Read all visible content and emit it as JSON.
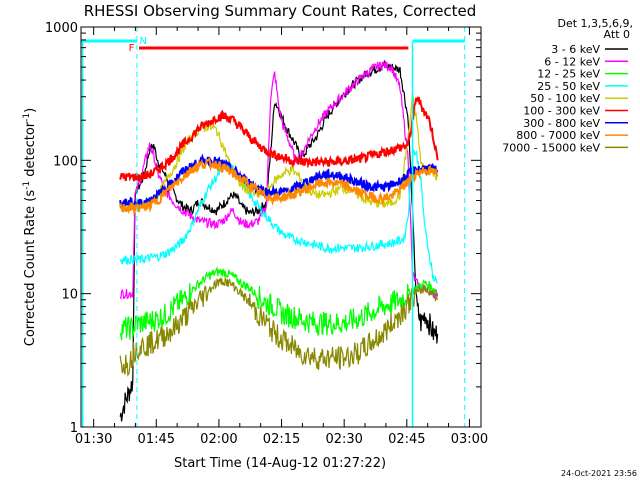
{
  "chart_data": {
    "type": "line",
    "title": "RHESSI Observing Summary Count Rates, Corrected",
    "xlabel": "Start Time (14-Aug-12 01:27:22)",
    "ylabel_main": "Corrected Count Rate (s",
    "ylabel_sup1": "-1",
    "ylabel_mid": " detector",
    "ylabel_sup2": "-1",
    "ylabel_end": ")",
    "y_scale": "log",
    "ylim": [
      1,
      1000
    ],
    "xlim_minutes": [
      -0.4,
      95.4
    ],
    "xticks": [
      {
        "label": "01:30",
        "m": 2.63
      },
      {
        "label": "01:45",
        "m": 17.63
      },
      {
        "label": "02:00",
        "m": 32.63
      },
      {
        "label": "02:15",
        "m": 47.63
      },
      {
        "label": "02:30",
        "m": 62.63
      },
      {
        "label": "02:45",
        "m": 77.63
      },
      {
        "label": "03:00",
        "m": 92.63
      }
    ],
    "yticks": [
      {
        "label": "1",
        "v": 1
      },
      {
        "label": "10",
        "v": 10
      },
      {
        "label": "100",
        "v": 100
      },
      {
        "label": "1000",
        "v": 1000
      }
    ],
    "legend_title_1": "Det 1,3,5,6,9,",
    "legend_title_2": "Att 0",
    "legend_placement": "right",
    "series": [
      {
        "name": "3 - 6 keV",
        "color": "#000000",
        "t": [
          9,
          10,
          11,
          12,
          12.5,
          13,
          14,
          15,
          16,
          17,
          18,
          20,
          22,
          24,
          26,
          28,
          30,
          32,
          34,
          35,
          36,
          37,
          38,
          40,
          42,
          44,
          46,
          47,
          48,
          49,
          50,
          51,
          52,
          53,
          54,
          56,
          58,
          60,
          62,
          64,
          66,
          68,
          70,
          72,
          74,
          76,
          78,
          80,
          81,
          82,
          83,
          84,
          85
        ],
        "v": [
          1.2,
          1.5,
          1.8,
          2.2,
          50,
          60,
          68,
          85,
          120,
          130,
          100,
          75,
          55,
          45,
          42,
          50,
          45,
          42,
          48,
          52,
          55,
          52,
          45,
          40,
          42,
          48,
          280,
          240,
          200,
          170,
          150,
          130,
          110,
          110,
          125,
          150,
          200,
          250,
          300,
          350,
          400,
          450,
          480,
          520,
          500,
          480,
          200,
          8,
          6,
          7,
          6,
          5,
          5
        ]
      },
      {
        "name": "6 - 12 keV",
        "color": "#ff00ff",
        "t": [
          9,
          10,
          11,
          12,
          12.5,
          13,
          14,
          15,
          16,
          17,
          18,
          20,
          22,
          24,
          26,
          28,
          30,
          32,
          34,
          35,
          36,
          37,
          38,
          40,
          42,
          44,
          45,
          46,
          47,
          48,
          49,
          50,
          51,
          52,
          53,
          54,
          56,
          58,
          60,
          62,
          64,
          66,
          68,
          70,
          72,
          74,
          76,
          78,
          79,
          80,
          81,
          82,
          83,
          84,
          85
        ],
        "v": [
          10,
          10,
          10,
          10,
          55,
          60,
          75,
          100,
          130,
          110,
          80,
          58,
          48,
          42,
          38,
          35,
          34,
          33,
          36,
          40,
          42,
          38,
          34,
          33,
          35,
          45,
          300,
          450,
          250,
          180,
          150,
          125,
          100,
          105,
          120,
          140,
          180,
          220,
          260,
          300,
          350,
          400,
          450,
          500,
          520,
          500,
          350,
          100,
          14,
          12,
          11,
          11,
          11,
          10,
          10
        ]
      },
      {
        "name": "12 - 25 keV",
        "color": "#00ff00",
        "t": [
          9,
          10,
          11,
          12,
          13,
          14,
          16,
          18,
          20,
          22,
          24,
          26,
          28,
          30,
          32,
          34,
          36,
          38,
          40,
          42,
          44,
          46,
          48,
          50,
          52,
          54,
          56,
          58,
          60,
          62,
          64,
          66,
          68,
          70,
          72,
          74,
          76,
          78,
          80,
          82,
          84,
          85
        ],
        "v": [
          5.5,
          5.5,
          5.5,
          5.5,
          6,
          6,
          6.2,
          6.5,
          7,
          8,
          9,
          10.5,
          12,
          13.5,
          14.5,
          14.5,
          13.5,
          12,
          11,
          9.5,
          8.5,
          8,
          7,
          6.8,
          6.5,
          6.2,
          6,
          6,
          6,
          6,
          6.2,
          6.5,
          7,
          7.5,
          8,
          8.5,
          9,
          10,
          11,
          12,
          11,
          10
        ]
      },
      {
        "name": "25 - 50 keV",
        "color": "#00ffff",
        "t": [
          9,
          10,
          11,
          12,
          14,
          16,
          18,
          20,
          22,
          24,
          26,
          28,
          30,
          32,
          34,
          36,
          38,
          40,
          42,
          44,
          46,
          48,
          50,
          52,
          54,
          56,
          58,
          60,
          62,
          64,
          66,
          68,
          70,
          72,
          74,
          76,
          77,
          78,
          79,
          80,
          81,
          82,
          83,
          84,
          85
        ],
        "v": [
          18,
          18,
          18,
          18,
          18,
          18.5,
          19,
          20,
          22,
          25,
          32,
          45,
          60,
          75,
          90,
          85,
          70,
          55,
          45,
          38,
          32,
          28,
          26,
          25,
          24,
          23,
          22,
          22,
          22,
          22,
          22,
          22.5,
          23,
          23.5,
          24,
          25,
          26,
          40,
          120,
          110,
          70,
          30,
          20,
          13,
          12
        ]
      },
      {
        "name": "50 - 100 keV",
        "color": "#cccc00",
        "t": [
          9,
          10,
          11,
          12,
          14,
          16,
          18,
          20,
          22,
          24,
          26,
          28,
          30,
          32,
          34,
          36,
          38,
          40,
          42,
          44,
          46,
          48,
          50,
          52,
          54,
          56,
          58,
          60,
          62,
          64,
          66,
          68,
          70,
          72,
          74,
          76,
          78,
          79,
          80,
          81,
          82,
          83,
          84,
          85
        ],
        "v": [
          46,
          46,
          46,
          46,
          46,
          48,
          55,
          70,
          90,
          120,
          150,
          170,
          180,
          170,
          120,
          80,
          65,
          58,
          55,
          58,
          70,
          80,
          85,
          75,
          60,
          55,
          55,
          58,
          62,
          60,
          55,
          50,
          48,
          47,
          48,
          55,
          150,
          300,
          200,
          95,
          85,
          85,
          80,
          75
        ]
      },
      {
        "name": "100 - 300 keV",
        "color": "#ff0000",
        "t": [
          9,
          10,
          11,
          12,
          14,
          16,
          18,
          20,
          22,
          24,
          26,
          28,
          30,
          32,
          34,
          36,
          38,
          40,
          42,
          44,
          46,
          48,
          50,
          52,
          54,
          56,
          58,
          60,
          62,
          64,
          66,
          68,
          70,
          72,
          74,
          76,
          78,
          79,
          80,
          81,
          82,
          83,
          84,
          85
        ],
        "v": [
          75,
          75,
          75,
          75,
          75,
          78,
          85,
          95,
          110,
          130,
          150,
          175,
          190,
          210,
          215,
          200,
          175,
          150,
          130,
          118,
          110,
          105,
          100,
          98,
          97,
          97,
          97,
          97,
          98,
          100,
          102,
          105,
          110,
          115,
          120,
          125,
          130,
          200,
          300,
          260,
          230,
          200,
          150,
          100
        ]
      },
      {
        "name": "300 - 800 keV",
        "color": "#0000ff",
        "t": [
          9,
          10,
          11,
          12,
          14,
          16,
          18,
          20,
          22,
          24,
          26,
          28,
          30,
          32,
          34,
          36,
          38,
          40,
          42,
          44,
          46,
          48,
          50,
          52,
          54,
          56,
          58,
          60,
          62,
          64,
          66,
          68,
          70,
          72,
          74,
          76,
          78,
          80,
          82,
          84,
          85
        ],
        "v": [
          48,
          48,
          48,
          48,
          48,
          50,
          55,
          62,
          72,
          82,
          90,
          97,
          100,
          98,
          92,
          85,
          75,
          68,
          62,
          58,
          57,
          58,
          60,
          65,
          70,
          75,
          78,
          78,
          76,
          72,
          68,
          65,
          63,
          63,
          65,
          70,
          78,
          85,
          88,
          85,
          82
        ]
      },
      {
        "name": "800 - 7000 keV",
        "color": "#ff8800",
        "t": [
          9,
          10,
          11,
          12,
          14,
          16,
          18,
          20,
          22,
          24,
          26,
          28,
          30,
          32,
          34,
          36,
          38,
          40,
          42,
          44,
          46,
          48,
          50,
          52,
          54,
          56,
          58,
          60,
          62,
          64,
          66,
          68,
          70,
          72,
          74,
          76,
          78,
          80,
          82,
          84,
          85
        ],
        "v": [
          44,
          44,
          44,
          44,
          44,
          46,
          50,
          58,
          66,
          75,
          85,
          92,
          95,
          93,
          87,
          80,
          72,
          65,
          58,
          54,
          52,
          53,
          55,
          58,
          62,
          66,
          68,
          68,
          66,
          62,
          58,
          55,
          52,
          52,
          54,
          60,
          70,
          80,
          85,
          82,
          78
        ]
      },
      {
        "name": "7000 - 15000 keV",
        "color": "#888800",
        "t": [
          9,
          10,
          11,
          12,
          13,
          14,
          16,
          18,
          20,
          22,
          24,
          26,
          28,
          30,
          32,
          34,
          36,
          38,
          40,
          42,
          44,
          46,
          48,
          50,
          52,
          54,
          56,
          58,
          60,
          62,
          64,
          66,
          68,
          70,
          72,
          74,
          76,
          78,
          80,
          82,
          84,
          85
        ],
        "v": [
          3,
          3,
          3,
          3.5,
          4,
          4,
          4.2,
          4.5,
          5,
          5.5,
          6.5,
          7.5,
          9,
          10.5,
          12,
          12.5,
          11.5,
          10,
          8.5,
          7,
          6,
          5,
          4.5,
          4,
          3.6,
          3.5,
          3.3,
          3.3,
          3.3,
          3.3,
          3.4,
          3.6,
          4,
          4.5,
          5,
          6,
          7,
          8.5,
          10,
          11,
          10,
          9
        ]
      }
    ],
    "markers": [
      {
        "label": "F",
        "color": "#ff0000"
      },
      {
        "label": "N",
        "color": "#00ffff"
      }
    ]
  },
  "footer": {
    "timestamp": "24-Oct-2021 23:56"
  }
}
